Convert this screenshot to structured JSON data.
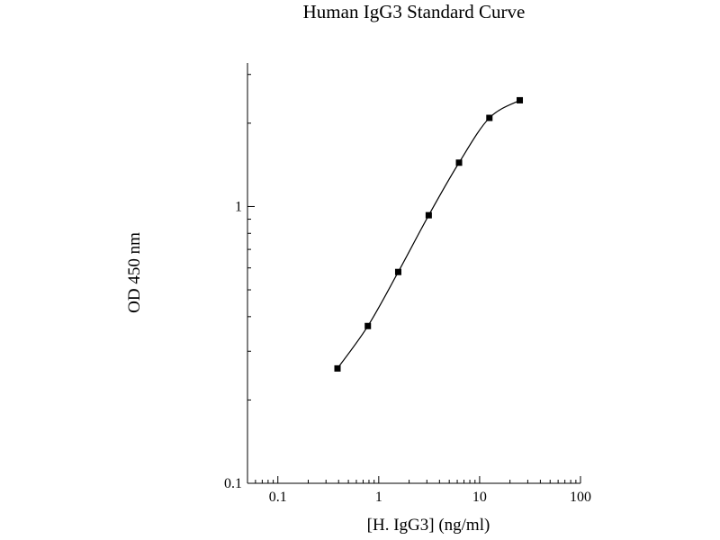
{
  "chart_data": {
    "type": "scatter",
    "title": "Human IgG3 Standard Curve",
    "xlabel": "[H. IgG3] (ng/ml)",
    "ylabel": "OD 450 nm",
    "xscale": "log",
    "yscale": "log",
    "xlim": [
      0.05,
      100
    ],
    "ylim": [
      0.1,
      3.3
    ],
    "x_ticks": [
      {
        "value": 0.1,
        "label": "0.1"
      },
      {
        "value": 1,
        "label": "1"
      },
      {
        "value": 10,
        "label": "10"
      },
      {
        "value": 100,
        "label": "100"
      }
    ],
    "y_ticks": [
      {
        "value": 0.1,
        "label": "0.1"
      },
      {
        "value": 1,
        "label": "1"
      }
    ],
    "grid": false,
    "legend": "none",
    "series": [
      {
        "marker": "square",
        "fit_line": "smooth curve",
        "x": [
          0.39,
          0.78,
          1.56,
          3.13,
          6.25,
          12.5,
          25
        ],
        "y": [
          0.26,
          0.37,
          0.58,
          0.93,
          1.44,
          2.09,
          2.42
        ]
      }
    ],
    "colors": {
      "line": "#000000",
      "marker": "#000000",
      "axis": "#000000",
      "background": "#ffffff"
    }
  }
}
